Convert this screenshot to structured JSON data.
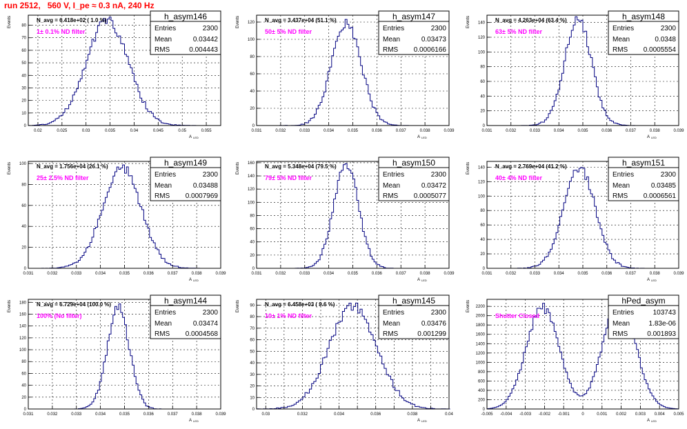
{
  "run_title": "run 2512,   560 V, I_pe ≈ 0.3 nA, 240 Hz",
  "colors": {
    "histogram": "#000080",
    "annotation": "#ff00ff",
    "title": "#ff0000",
    "grid": "#000000"
  },
  "stats_labels": {
    "entries": "Entries",
    "mean": "Mean",
    "rms": "RMS"
  },
  "chart_data": [
    {
      "type": "histogram",
      "name": "h_asym146",
      "nav": "N_avg = 6.418e+02 ( 1.0 %)",
      "filter": "1± 0.1% ND filter",
      "entries": "2300",
      "mean": "0.03442",
      "rms": "0.004443",
      "ylabel": "Events",
      "xlabel": "A",
      "xlim": [
        0.018,
        0.058
      ],
      "ylim": [
        0,
        88
      ],
      "grid": true,
      "xticks": [
        0.02,
        0.025,
        0.03,
        0.035,
        0.04,
        0.045,
        0.05,
        0.055
      ],
      "xtick_labels": [
        "0.02",
        "0.025",
        "0.03",
        "0.035",
        "0.04",
        "0.045",
        "0.05",
        "0.055"
      ],
      "yticks": [
        0,
        10,
        20,
        30,
        40,
        50,
        60,
        70,
        80
      ],
      "ytick_labels": [
        "0",
        "10",
        "20",
        "30",
        "40",
        "50",
        "60",
        "70",
        "80"
      ],
      "peak": 84,
      "center": 0.0344,
      "width": 0.0044,
      "bin": 0.0004
    },
    {
      "type": "histogram",
      "name": "h_asym147",
      "nav": "N_avg = 3.437e+04 (51.1 %)",
      "filter": "50± 5% ND filter",
      "entries": "2300",
      "mean": "0.03473",
      "rms": "0.0006166",
      "ylabel": "Events",
      "xlabel": "A",
      "xlim": [
        0.031,
        0.039
      ],
      "ylim": [
        0,
        128
      ],
      "grid": true,
      "xticks": [
        0.031,
        0.032,
        0.033,
        0.034,
        0.035,
        0.036,
        0.037,
        0.038,
        0.039
      ],
      "xtick_labels": [
        "0.031",
        "0.032",
        "0.033",
        "0.034",
        "0.035",
        "0.036",
        "0.037",
        "0.038",
        "0.039"
      ],
      "yticks": [
        0,
        20,
        40,
        60,
        80,
        100,
        120
      ],
      "ytick_labels": [
        "0",
        "20",
        "40",
        "60",
        "80",
        "100",
        "120"
      ],
      "peak": 118,
      "center": 0.03473,
      "width": 0.00062,
      "bin": 8e-05
    },
    {
      "type": "histogram",
      "name": "h_asym148",
      "nav": "N_avg = 4.263e+04 (63.4 %)",
      "filter": "63± 5% ND filter",
      "entries": "2300",
      "mean": "0.0348",
      "rms": "0.0005554",
      "ylabel": "Events",
      "xlabel": "A",
      "xlim": [
        0.031,
        0.039
      ],
      "ylim": [
        0,
        150
      ],
      "grid": true,
      "xticks": [
        0.031,
        0.032,
        0.033,
        0.034,
        0.035,
        0.036,
        0.037,
        0.038,
        0.039
      ],
      "xtick_labels": [
        "0.031",
        "0.032",
        "0.033",
        "0.034",
        "0.035",
        "0.036",
        "0.037",
        "0.038",
        "0.039"
      ],
      "yticks": [
        0,
        20,
        40,
        60,
        80,
        100,
        120,
        140
      ],
      "ytick_labels": [
        "0",
        "20",
        "40",
        "60",
        "80",
        "100",
        "120",
        "140"
      ],
      "peak": 145,
      "center": 0.0348,
      "width": 0.00056,
      "bin": 8e-05
    },
    {
      "type": "histogram",
      "name": "h_asym149",
      "nav": "N_avg = 1.756e+04 (26.1 %)",
      "filter": "25± 2.5% ND filter",
      "entries": "2300",
      "mean": "0.03488",
      "rms": "0.0007969",
      "ylabel": "Events",
      "xlabel": "A",
      "xlim": [
        0.031,
        0.039
      ],
      "ylim": [
        0,
        102
      ],
      "grid": true,
      "xticks": [
        0.031,
        0.032,
        0.033,
        0.034,
        0.035,
        0.036,
        0.037,
        0.038,
        0.039
      ],
      "xtick_labels": [
        "0.031",
        "0.032",
        "0.033",
        "0.034",
        "0.035",
        "0.036",
        "0.037",
        "0.038",
        "0.039"
      ],
      "yticks": [
        0,
        20,
        40,
        60,
        80,
        100
      ],
      "ytick_labels": [
        "0",
        "20",
        "40",
        "60",
        "80",
        "100"
      ],
      "peak": 97,
      "center": 0.03488,
      "width": 0.0008,
      "bin": 8e-05
    },
    {
      "type": "histogram",
      "name": "h_asym150",
      "nav": "N_avg = 5.348e+04 (79.5 %)",
      "filter": "79± 5% ND filter",
      "entries": "2300",
      "mean": "0.03472",
      "rms": "0.0005077",
      "ylabel": "Events",
      "xlabel": "A",
      "xlim": [
        0.031,
        0.039
      ],
      "ylim": [
        0,
        162
      ],
      "grid": true,
      "xticks": [
        0.031,
        0.032,
        0.033,
        0.034,
        0.035,
        0.036,
        0.037,
        0.038,
        0.039
      ],
      "xtick_labels": [
        "0.031",
        "0.032",
        "0.033",
        "0.034",
        "0.035",
        "0.036",
        "0.037",
        "0.038",
        "0.039"
      ],
      "yticks": [
        0,
        20,
        40,
        60,
        80,
        100,
        120,
        140,
        160
      ],
      "ytick_labels": [
        "0",
        "20",
        "40",
        "60",
        "80",
        "100",
        "120",
        "140",
        "160"
      ],
      "peak": 158,
      "center": 0.03472,
      "width": 0.00051,
      "bin": 8e-05
    },
    {
      "type": "histogram",
      "name": "h_asym151",
      "nav": "N_avg = 2.769e+04 (41.2 %)",
      "filter": "40± 4% ND filter",
      "entries": "2300",
      "mean": "0.03485",
      "rms": "0.0006561",
      "ylabel": "Events",
      "xlabel": "A",
      "xlim": [
        0.031,
        0.039
      ],
      "ylim": [
        0,
        148
      ],
      "grid": true,
      "xticks": [
        0.031,
        0.032,
        0.033,
        0.034,
        0.035,
        0.036,
        0.037,
        0.038,
        0.039
      ],
      "xtick_labels": [
        "0.031",
        "0.032",
        "0.033",
        "0.034",
        "0.035",
        "0.036",
        "0.037",
        "0.038",
        "0.039"
      ],
      "yticks": [
        0,
        20,
        40,
        60,
        80,
        100,
        120,
        140
      ],
      "ytick_labels": [
        "0",
        "20",
        "40",
        "60",
        "80",
        "100",
        "120",
        "140"
      ],
      "peak": 140,
      "center": 0.03485,
      "width": 0.00066,
      "bin": 8e-05
    },
    {
      "type": "histogram",
      "name": "h_asym144",
      "nav": "N_avg = 6.729e+04 (100.0 %)",
      "filter": "100% (No filter)",
      "entries": "2300",
      "mean": "0.03474",
      "rms": "0.0004568",
      "ylabel": "Events",
      "xlabel": "A",
      "xlim": [
        0.031,
        0.039
      ],
      "ylim": [
        0,
        185
      ],
      "grid": true,
      "xticks": [
        0.031,
        0.032,
        0.033,
        0.034,
        0.035,
        0.036,
        0.037,
        0.038,
        0.039
      ],
      "xtick_labels": [
        "0.031",
        "0.032",
        "0.033",
        "0.034",
        "0.035",
        "0.036",
        "0.037",
        "0.038",
        "0.039"
      ],
      "yticks": [
        0,
        20,
        40,
        60,
        80,
        100,
        120,
        140,
        160,
        180
      ],
      "ytick_labels": [
        "0",
        "20",
        "40",
        "60",
        "80",
        "100",
        "120",
        "140",
        "160",
        "180"
      ],
      "peak": 172,
      "center": 0.03474,
      "width": 0.00046,
      "bin": 8e-05
    },
    {
      "type": "histogram",
      "name": "h_asym145",
      "nav": "N_avg = 6.458e+03 ( 9.6 %)",
      "filter": "10± 1% ND filter",
      "entries": "2300",
      "mean": "0.03476",
      "rms": "0.001299",
      "ylabel": "Events",
      "xlabel": "A",
      "xlim": [
        0.0295,
        0.04
      ],
      "ylim": [
        0,
        95
      ],
      "grid": true,
      "xticks": [
        0.03,
        0.031,
        0.032,
        0.033,
        0.034,
        0.035,
        0.036,
        0.037,
        0.038,
        0.039,
        0.04
      ],
      "xtick_labels": [
        "0.03",
        "",
        "0.032",
        "",
        "0.034",
        "",
        "0.036",
        "",
        "0.038",
        "",
        "0.04"
      ],
      "yticks": [
        0,
        10,
        20,
        30,
        40,
        50,
        60,
        70,
        80,
        90
      ],
      "ytick_labels": [
        "0",
        "10",
        "20",
        "30",
        "40",
        "50",
        "60",
        "70",
        "80",
        "90"
      ],
      "peak": 89,
      "center": 0.03476,
      "width": 0.0013,
      "bin": 0.00012
    },
    {
      "type": "histogram",
      "name": "hPed_asym",
      "nav": "",
      "filter": "Shutter Closed",
      "entries": "103743",
      "mean": "1.83e-06",
      "rms": "0.001893",
      "ylabel": "Events",
      "xlabel": "A",
      "xlim": [
        -0.005,
        0.005
      ],
      "ylim": [
        0,
        2350
      ],
      "grid": true,
      "xticks": [
        -0.005,
        -0.004,
        -0.003,
        -0.002,
        -0.001,
        0,
        0.001,
        0.002,
        0.003,
        0.004,
        0.005
      ],
      "xtick_labels": [
        "-0.005",
        "-0.004",
        "-0.003",
        "-0.002",
        "-0.001",
        "0",
        "0.001",
        "0.002",
        "0.003",
        "0.004",
        "0.005"
      ],
      "yticks": [
        0,
        200,
        400,
        600,
        800,
        1000,
        1200,
        1400,
        1600,
        1800,
        2000,
        2200
      ],
      "ytick_labels": [
        "0",
        "200",
        "400",
        "600",
        "800",
        "1000",
        "1200",
        "1400",
        "1600",
        "1800",
        "2000",
        "2200"
      ],
      "bimodal": true,
      "bin": 0.0001
    }
  ]
}
